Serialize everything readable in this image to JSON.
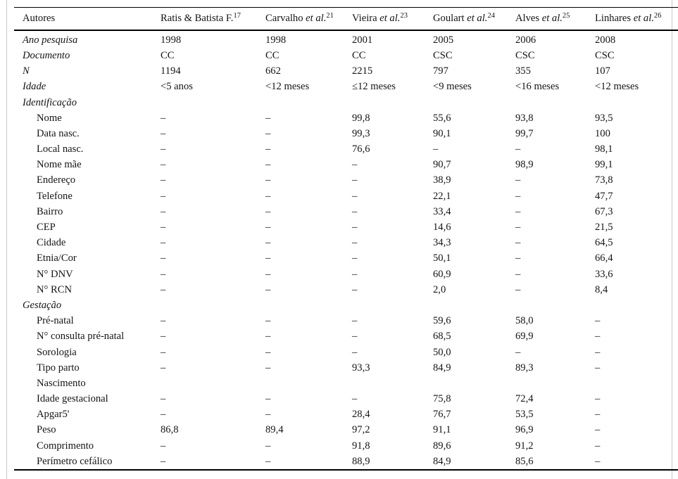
{
  "figure": {
    "header": {
      "autores_label": "Autores",
      "columns": [
        {
          "name": "Ratis & Batista F.",
          "etal": "",
          "sup": "17"
        },
        {
          "name": "Carvalho",
          "etal": "et al.",
          "sup": "21"
        },
        {
          "name": "Vieira",
          "etal": "et al.",
          "sup": "23"
        },
        {
          "name": "Goulart",
          "etal": "et al.",
          "sup": "24"
        },
        {
          "name": "Alves",
          "etal": "et al.",
          "sup": "25"
        },
        {
          "name": "Linhares",
          "etal": "et al.",
          "sup": "26"
        }
      ]
    },
    "rows": [
      {
        "type": "var",
        "label": "Ano pesquisa",
        "values": [
          "1998",
          "1998",
          "2001",
          "2005",
          "2006",
          "2008"
        ]
      },
      {
        "type": "var",
        "label": "Documento",
        "values": [
          "CC",
          "CC",
          "CC",
          "CSC",
          "CSC",
          "CSC"
        ]
      },
      {
        "type": "var",
        "label": "N",
        "values": [
          "1194",
          "662",
          "2215",
          "797",
          "355",
          "107"
        ]
      },
      {
        "type": "var",
        "label": "Idade",
        "values": [
          "<5 anos",
          "<12 meses",
          "≤12 meses",
          "<9 meses",
          "<16 meses",
          "<12 meses"
        ]
      },
      {
        "type": "section",
        "label": "Identificação",
        "values": [
          "",
          "",
          "",
          "",
          "",
          ""
        ]
      },
      {
        "type": "item",
        "label": "Nome",
        "values": [
          "–",
          "–",
          "99,8",
          "55,6",
          "93,8",
          "93,5"
        ]
      },
      {
        "type": "item",
        "label": "Data nasc.",
        "values": [
          "–",
          "–",
          "99,3",
          "90,1",
          "99,7",
          "100"
        ]
      },
      {
        "type": "item",
        "label": "Local nasc.",
        "values": [
          "–",
          "–",
          "76,6",
          "–",
          "–",
          "98,1"
        ]
      },
      {
        "type": "item",
        "label": "Nome mãe",
        "values": [
          "–",
          "–",
          "–",
          "90,7",
          "98,9",
          "99,1"
        ]
      },
      {
        "type": "item",
        "label": "Endereço",
        "values": [
          "–",
          "–",
          "–",
          "38,9",
          "–",
          "73,8"
        ]
      },
      {
        "type": "item",
        "label": "Telefone",
        "values": [
          "–",
          "–",
          "–",
          "22,1",
          "–",
          "47,7"
        ]
      },
      {
        "type": "item",
        "label": "Bairro",
        "values": [
          "–",
          "–",
          "–",
          "33,4",
          "–",
          "67,3"
        ]
      },
      {
        "type": "item",
        "label": "CEP",
        "values": [
          "–",
          "–",
          "–",
          "14,6",
          "–",
          "21,5"
        ]
      },
      {
        "type": "item",
        "label": "Cidade",
        "values": [
          "–",
          "–",
          "–",
          "34,3",
          "–",
          "64,5"
        ]
      },
      {
        "type": "item",
        "label": "Etnia/Cor",
        "values": [
          "–",
          "–",
          "–",
          "50,1",
          "–",
          "66,4"
        ]
      },
      {
        "type": "item",
        "label": "N° DNV",
        "values": [
          "–",
          "–",
          "–",
          "60,9",
          "–",
          "33,6"
        ]
      },
      {
        "type": "item",
        "label": "N° RCN",
        "values": [
          "–",
          "–",
          "–",
          "2,0",
          "–",
          "8,4"
        ]
      },
      {
        "type": "section",
        "label": "Gestação",
        "values": [
          "",
          "",
          "",
          "",
          "",
          ""
        ]
      },
      {
        "type": "item",
        "label": "Pré-natal",
        "values": [
          "–",
          "–",
          "–",
          "59,6",
          "58,0",
          "–"
        ]
      },
      {
        "type": "item",
        "label": "N° consulta pré-natal",
        "values": [
          "–",
          "–",
          "–",
          "68,5",
          "69,9",
          "–"
        ]
      },
      {
        "type": "item",
        "label": "Sorologia",
        "values": [
          "–",
          "–",
          "–",
          "50,0",
          "–",
          "–"
        ]
      },
      {
        "type": "item",
        "label": "Tipo parto",
        "values": [
          "–",
          "–",
          "93,3",
          "84,9",
          "89,3",
          "–"
        ]
      },
      {
        "type": "item",
        "label": "Nascimento",
        "values": [
          "",
          "",
          "",
          "",
          "",
          ""
        ]
      },
      {
        "type": "item",
        "label": "Idade gestacional",
        "values": [
          "–",
          "–",
          "–",
          "75,8",
          "72,4",
          "–"
        ]
      },
      {
        "type": "item",
        "label": "Apgar5'",
        "values": [
          "–",
          "–",
          "28,4",
          "76,7",
          "53,5",
          "–"
        ]
      },
      {
        "type": "item",
        "label": "Peso",
        "values": [
          "86,8",
          "89,4",
          "97,2",
          "91,1",
          "96,9",
          "–"
        ]
      },
      {
        "type": "item",
        "label": "Comprimento",
        "values": [
          "–",
          "–",
          "91,8",
          "89,6",
          "91,2",
          "–"
        ]
      },
      {
        "type": "item",
        "label": "Perímetro cefálico",
        "values": [
          "–",
          "–",
          "88,9",
          "84,9",
          "85,6",
          "–"
        ]
      }
    ],
    "colors": {
      "rule": "#000000",
      "frame_border": "#c6cad2",
      "text": "#141414"
    }
  }
}
